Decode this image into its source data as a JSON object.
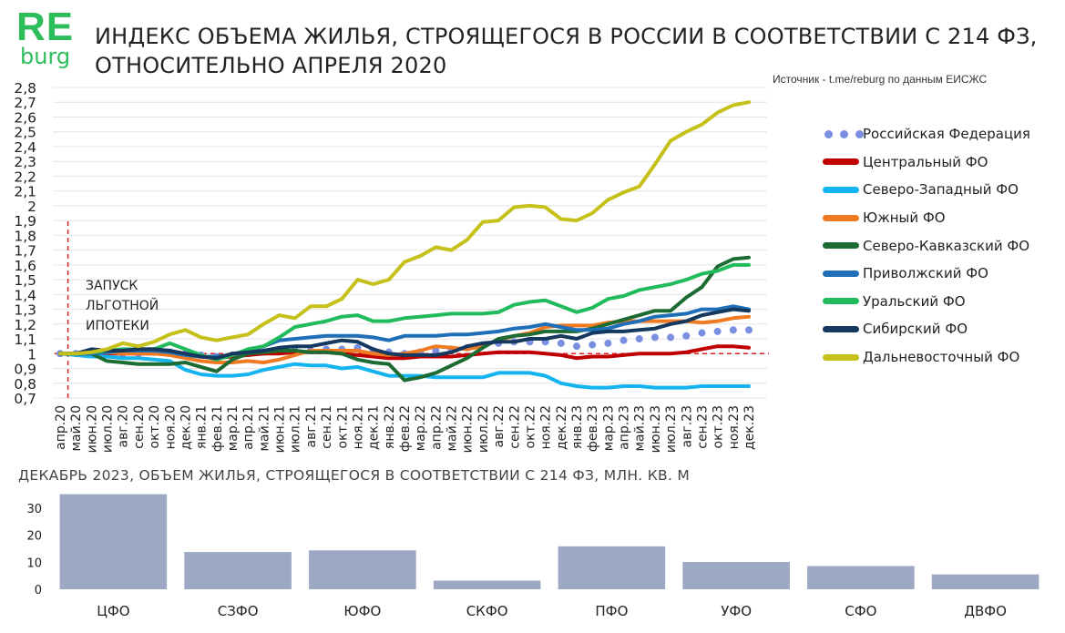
{
  "logo": {
    "part1": "RE",
    "part2": "burg",
    "color": "#2dbd5a"
  },
  "title_line1": "ИНДЕКС ОБЪЕМА ЖИЛЬЯ, СТРОЯЩЕГОСЯ В РОССИИ В СООТВЕТСТВИИ С 214 ФЗ,",
  "title_line2": "ОТНОСИТЕЛЬНО АПРЕЛЯ 2020",
  "source": "Источник - t.me/reburg по данным ЕИСЖС",
  "annotation": {
    "line1": "ЗАПУСК",
    "line2": "ЛЬГОТНОЙ",
    "line3": "ИПОТЕКИ"
  },
  "subtitle": "ДЕКАБРЬ 2023, ОБЪЕМ ЖИЛЬЯ, СТРОЯЩЕГОСЯ В СООТВЕТСТВИИ С 214 ФЗ, МЛН. КВ. М",
  "chart_data": [
    {
      "type": "line",
      "title": "ИНДЕКС ОБЪЕМА ЖИЛЬЯ, СТРОЯЩЕГОСЯ В РОССИИ В СООТВЕТСТВИИ С 214 ФЗ, ОТНОСИТЕЛЬНО АПРЕЛЯ 2020",
      "ylim": [
        0.7,
        2.8
      ],
      "yticks": [
        "0,7",
        "0,8",
        "0,9",
        "1",
        "1,1",
        "1,2",
        "1,3",
        "1,4",
        "1,5",
        "1,6",
        "1,7",
        "1,8",
        "1,9",
        "2",
        "2,1",
        "2,2",
        "2,3",
        "2,4",
        "2,5",
        "2,6",
        "2,7",
        "2,8"
      ],
      "reference_line": 1.0,
      "reference_x_index": 0.5,
      "grid": true,
      "legend_position": "right",
      "categories": [
        "апр.20",
        "май.20",
        "июн.20",
        "июл.20",
        "авг.20",
        "сен.20",
        "окт.20",
        "ноя.20",
        "дек.20",
        "янв.21",
        "фев.21",
        "мар.21",
        "апр.21",
        "май.21",
        "июн.21",
        "июл.21",
        "авг.21",
        "сен.21",
        "окт.21",
        "ноя.21",
        "дек.21",
        "янв.22",
        "фев.22",
        "мар.22",
        "апр.22",
        "май.22",
        "июн.22",
        "июл.22",
        "авг.22",
        "сен.22",
        "окт.22",
        "ноя.22",
        "дек.22",
        "янв.23",
        "фев.23",
        "мар.23",
        "апр.23",
        "май.23",
        "июн.23",
        "июл.23",
        "авг.23",
        "сен.23",
        "окт.23",
        "ноя.23",
        "дек.23"
      ],
      "series": [
        {
          "name": "Российская Федерация",
          "color": "#7b8fe0",
          "style": "dots",
          "values": [
            1,
            1,
            1.01,
            1.01,
            1,
            1,
            1.01,
            1.01,
            1,
            0.99,
            0.98,
            0.99,
            1,
            1.01,
            1.02,
            1.02,
            1.02,
            1.03,
            1.03,
            1.04,
            1.02,
            1.01,
            1,
            1.01,
            1.02,
            1.03,
            1.04,
            1.06,
            1.07,
            1.08,
            1.08,
            1.08,
            1.07,
            1.05,
            1.06,
            1.07,
            1.09,
            1.1,
            1.11,
            1.11,
            1.12,
            1.14,
            1.15,
            1.16,
            1.16
          ]
        },
        {
          "name": "Центральный ФО",
          "color": "#c00000",
          "style": "line",
          "values": [
            1,
            1,
            1,
            1,
            1,
            1,
            1,
            1,
            1,
            0.98,
            0.97,
            0.98,
            0.99,
            1,
            1,
            1.01,
            1.01,
            1.01,
            1,
            0.99,
            0.98,
            0.97,
            0.97,
            0.98,
            0.98,
            0.98,
            0.99,
            1,
            1.01,
            1.01,
            1.01,
            1,
            0.99,
            0.97,
            0.98,
            0.98,
            0.99,
            1,
            1,
            1,
            1.01,
            1.03,
            1.05,
            1.05,
            1.04
          ]
        },
        {
          "name": "Северо-Западный ФО",
          "color": "#14b4f0",
          "style": "line",
          "values": [
            1,
            0.99,
            0.98,
            0.98,
            0.97,
            0.97,
            0.96,
            0.95,
            0.89,
            0.86,
            0.85,
            0.85,
            0.86,
            0.89,
            0.91,
            0.93,
            0.92,
            0.92,
            0.9,
            0.91,
            0.88,
            0.85,
            0.85,
            0.85,
            0.84,
            0.84,
            0.84,
            0.84,
            0.87,
            0.87,
            0.87,
            0.85,
            0.8,
            0.78,
            0.77,
            0.77,
            0.78,
            0.78,
            0.77,
            0.77,
            0.77,
            0.78,
            0.78,
            0.78,
            0.78
          ]
        },
        {
          "name": "Южный ФО",
          "color": "#f07a22",
          "style": "line",
          "values": [
            1,
            1,
            1,
            1.01,
            1,
            1,
            1,
            0.99,
            0.97,
            0.95,
            0.94,
            0.94,
            0.95,
            0.94,
            0.96,
            0.99,
            1.02,
            1.02,
            1.02,
            1.02,
            1,
            0.99,
            1,
            1.02,
            1.05,
            1.04,
            1.03,
            1.05,
            1.09,
            1.12,
            1.14,
            1.18,
            1.19,
            1.19,
            1.19,
            1.21,
            1.22,
            1.22,
            1.22,
            1.22,
            1.22,
            1.21,
            1.22,
            1.24,
            1.25
          ]
        },
        {
          "name": "Северо-Кавказский ФО",
          "color": "#1c6b32",
          "style": "line",
          "values": [
            1,
            1,
            1,
            0.95,
            0.94,
            0.93,
            0.93,
            0.93,
            0.94,
            0.91,
            0.88,
            0.96,
            1,
            1.01,
            1.02,
            1.02,
            1.01,
            1.01,
            1,
            0.96,
            0.94,
            0.93,
            0.82,
            0.84,
            0.87,
            0.92,
            0.97,
            1.04,
            1.1,
            1.12,
            1.13,
            1.15,
            1.15,
            1.15,
            1.17,
            1.2,
            1.23,
            1.26,
            1.29,
            1.29,
            1.38,
            1.45,
            1.59,
            1.64,
            1.65
          ]
        },
        {
          "name": "Приволжский ФО",
          "color": "#1f6fb8",
          "style": "line",
          "values": [
            1,
            1,
            1,
            1.01,
            1.02,
            1.02,
            1.02,
            1.01,
            0.99,
            0.98,
            0.98,
            0.99,
            1.02,
            1.05,
            1.09,
            1.1,
            1.11,
            1.12,
            1.12,
            1.12,
            1.11,
            1.09,
            1.12,
            1.12,
            1.12,
            1.13,
            1.13,
            1.14,
            1.15,
            1.17,
            1.18,
            1.2,
            1.18,
            1.16,
            1.16,
            1.17,
            1.2,
            1.22,
            1.25,
            1.26,
            1.27,
            1.3,
            1.3,
            1.32,
            1.3
          ]
        },
        {
          "name": "Уральский ФО",
          "color": "#22bb5c",
          "style": "line",
          "values": [
            1,
            1,
            1.01,
            1.02,
            1.03,
            1.03,
            1.03,
            1.07,
            1.03,
            0.99,
            0.96,
            0.99,
            1.03,
            1.05,
            1.11,
            1.18,
            1.2,
            1.22,
            1.25,
            1.26,
            1.22,
            1.22,
            1.24,
            1.25,
            1.26,
            1.27,
            1.27,
            1.27,
            1.28,
            1.33,
            1.35,
            1.36,
            1.32,
            1.28,
            1.31,
            1.37,
            1.39,
            1.43,
            1.45,
            1.47,
            1.5,
            1.54,
            1.56,
            1.6,
            1.6
          ]
        },
        {
          "name": "Сибирский ФО",
          "color": "#14385e",
          "style": "line",
          "values": [
            1,
            1,
            1.03,
            1.02,
            1.02,
            1.03,
            1.03,
            1.02,
            1.0,
            0.98,
            0.97,
            1,
            1.01,
            1.02,
            1.04,
            1.05,
            1.05,
            1.07,
            1.09,
            1.08,
            1.03,
            1,
            0.99,
            0.99,
            0.99,
            1.01,
            1.05,
            1.07,
            1.08,
            1.08,
            1.1,
            1.1,
            1.12,
            1.1,
            1.14,
            1.15,
            1.15,
            1.16,
            1.17,
            1.2,
            1.22,
            1.26,
            1.28,
            1.3,
            1.29
          ]
        },
        {
          "name": "Дальневосточный ФО",
          "color": "#c5c01a",
          "style": "line",
          "values": [
            1,
            1,
            1.01,
            1.03,
            1.07,
            1.05,
            1.08,
            1.13,
            1.16,
            1.11,
            1.09,
            1.11,
            1.13,
            1.2,
            1.26,
            1.24,
            1.32,
            1.32,
            1.37,
            1.5,
            1.47,
            1.5,
            1.62,
            1.66,
            1.72,
            1.7,
            1.77,
            1.89,
            1.9,
            1.99,
            2.0,
            1.99,
            1.91,
            1.9,
            1.95,
            2.04,
            2.09,
            2.13,
            2.28,
            2.44,
            2.5,
            2.55,
            2.63,
            2.68,
            2.7
          ]
        }
      ]
    },
    {
      "type": "bar",
      "title": "ДЕКАБРЬ 2023, ОБЪЕМ ЖИЛЬЯ, СТРОЯЩЕГОСЯ В СООТВЕТСТВИИ С 214 ФЗ, МЛН. КВ. М",
      "categories": [
        "ЦФО",
        "СЗФО",
        "ЮФО",
        "СКФО",
        "ПФО",
        "УФО",
        "СФО",
        "ДВФО"
      ],
      "values": [
        35.2,
        13.8,
        14.4,
        3.2,
        15.9,
        10.1,
        8.6,
        5.5
      ],
      "ylim": [
        0,
        35
      ],
      "yticks": [
        "0",
        "10",
        "20",
        "30"
      ],
      "color": "#9ca8c4"
    }
  ]
}
